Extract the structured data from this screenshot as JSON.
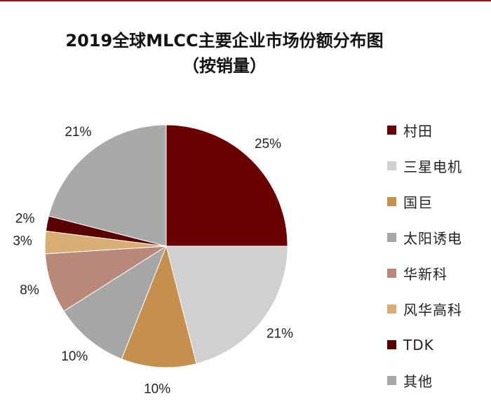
{
  "chart_data": {
    "type": "pie",
    "title": "2019全球MLCC主要企业市场份额分布图",
    "subtitle": "（按销量）",
    "legend_position": "right",
    "slices": [
      {
        "label": "村田",
        "value": 25,
        "value_label": "25%",
        "color": "#6b0000"
      },
      {
        "label": "三星电机",
        "value": 21,
        "value_label": "21%",
        "color": "#d0d0d0"
      },
      {
        "label": "国巨",
        "value": 10,
        "value_label": "10%",
        "color": "#c68f4e"
      },
      {
        "label": "太阳诱电",
        "value": 10,
        "value_label": "10%",
        "color": "#a6a6a6"
      },
      {
        "label": "华新科",
        "value": 8,
        "value_label": "8%",
        "color": "#b98878"
      },
      {
        "label": "风华高科",
        "value": 3,
        "value_label": "3%",
        "color": "#d8ae74"
      },
      {
        "label": "TDK",
        "value": 2,
        "value_label": "2%",
        "color": "#5a0000"
      },
      {
        "label": "其他",
        "value": 21,
        "value_label": "21%",
        "color": "#a9a9a9"
      }
    ]
  }
}
